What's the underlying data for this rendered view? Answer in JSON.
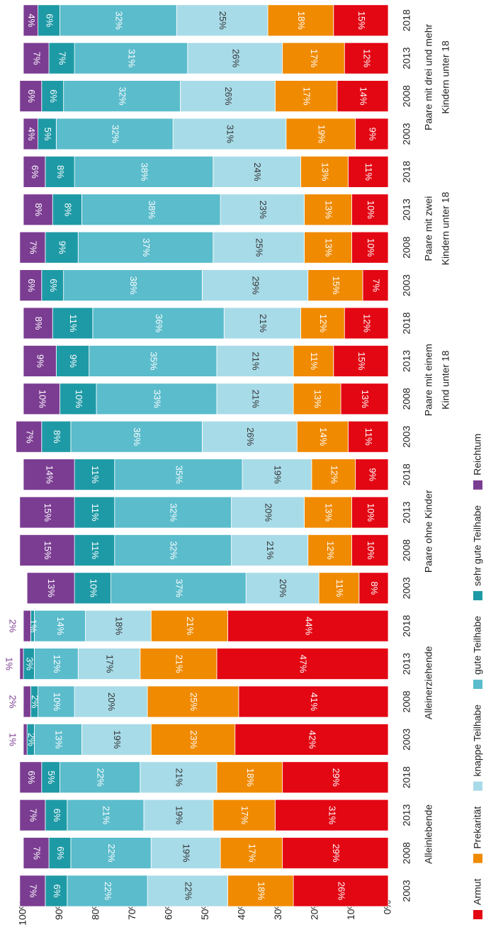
{
  "chart_data": {
    "type": "stacked_bar",
    "categories": [
      "2003",
      "2008",
      "2013",
      "2018",
      "2003",
      "2008",
      "2013",
      "2018",
      "2003",
      "2008",
      "2013",
      "2018",
      "2003",
      "2008",
      "2013",
      "2018",
      "2003",
      "2008",
      "2013",
      "2018",
      "2003",
      "2008",
      "2013",
      "2018"
    ],
    "groups": [
      [
        "Alleinlebende"
      ],
      [
        "Alleinerziehende"
      ],
      [
        "Paare ohne Kinder"
      ],
      [
        "Paare mit einem",
        "Kind unter 18"
      ],
      [
        "Paare mit zwei",
        "Kindern unter 18"
      ],
      [
        "Paare mit drei und mehr",
        "Kindern unter 18"
      ]
    ],
    "series": [
      {
        "name": "Armut",
        "color": "#e30613",
        "values": [
          26,
          29,
          31,
          29,
          42,
          41,
          47,
          44,
          8,
          10,
          10,
          9,
          11,
          13,
          15,
          12,
          7,
          10,
          10,
          11,
          9,
          14,
          12,
          15
        ],
        "value_labels": [
          "26%",
          "29%",
          "31%",
          "29%",
          "42%",
          "41%",
          "47%",
          "44%",
          "8%",
          "10%",
          "10%",
          "9%",
          "11%",
          "13%",
          "15%",
          "12%",
          "7%",
          "10%",
          "10%",
          "11%",
          "9%",
          "14%",
          "12%",
          "15%"
        ]
      },
      {
        "name": "Prekarität",
        "color": "#f08a00",
        "values": [
          18,
          17,
          17,
          18,
          23,
          25,
          21,
          21,
          11,
          12,
          13,
          12,
          14,
          13,
          11,
          12,
          15,
          13,
          13,
          13,
          19,
          17,
          17,
          18
        ],
        "value_labels": [
          "18%",
          "17%",
          "17%",
          "18%",
          "23%",
          "25%",
          "21%",
          "21%",
          "11%",
          "12%",
          "13%",
          "12%",
          "14%",
          "13%",
          "11%",
          "12%",
          "15%",
          "13%",
          "13%",
          "13%",
          "19%",
          "17%",
          "17%",
          "18%"
        ]
      },
      {
        "name": "knappe Teilhabe",
        "color": "#a8dbe8",
        "values": [
          22,
          19,
          19,
          21,
          19,
          20,
          17,
          18,
          20,
          21,
          20,
          19,
          26,
          21,
          21,
          21,
          29,
          25,
          23,
          24,
          31,
          26,
          26,
          25
        ],
        "value_labels": [
          "22%",
          "19%",
          "19%",
          "21%",
          "19%",
          "20%",
          "17%",
          "18%",
          "20%",
          "21%",
          "20%",
          "19%",
          "26%",
          "21%",
          "21%",
          "21%",
          "29%",
          "25%",
          "23%",
          "24%",
          "31%",
          "26%",
          "26%",
          "25%"
        ]
      },
      {
        "name": "gute Teilhabe",
        "color": "#5bbccc",
        "values": [
          22,
          22,
          21,
          22,
          13,
          10,
          12,
          14,
          37,
          32,
          32,
          35,
          36,
          33,
          35,
          36,
          38,
          37,
          38,
          38,
          32,
          32,
          31,
          32
        ],
        "value_labels": [
          "22%",
          "22%",
          "21%",
          "22%",
          "13%",
          "10%",
          "12%",
          "14%",
          "37%",
          "32%",
          "32%",
          "35%",
          "36%",
          "33%",
          "35%",
          "36%",
          "38%",
          "37%",
          "38%",
          "38%",
          "32%",
          "32%",
          "31%",
          "32%"
        ]
      },
      {
        "name": "sehr gute Teilhabe",
        "color": "#1e9aa6",
        "values": [
          6,
          6,
          6,
          5,
          2,
          2,
          3,
          1,
          10,
          11,
          11,
          11,
          8,
          10,
          9,
          11,
          6,
          9,
          8,
          8,
          5,
          6,
          7,
          6
        ],
        "value_labels": [
          "6%",
          "6%",
          "6%",
          "5%",
          "2%",
          "2%",
          "3%",
          "1%",
          "10%",
          "11%",
          "11%",
          "11%",
          "8%",
          "10%",
          "9%",
          "11%",
          "6%",
          "9%",
          "8%",
          "8%",
          "5%",
          "6%",
          "7%",
          "6%"
        ]
      },
      {
        "name": "Reichtum",
        "color": "#7b3d92",
        "values": [
          7,
          7,
          7,
          6,
          1,
          2,
          1,
          2,
          13,
          15,
          15,
          14,
          7,
          10,
          9,
          8,
          6,
          7,
          8,
          6,
          4,
          6,
          7,
          4
        ],
        "value_labels": [
          "7%",
          "7%",
          "7%",
          "6%",
          "1%",
          "2%",
          "1%",
          "2%",
          "13%",
          "15%",
          "15%",
          "14%",
          "7%",
          "10%",
          "9%",
          "8%",
          "6%",
          "7%",
          "8%",
          "6%",
          "4%",
          "6%",
          "7%",
          "4%"
        ]
      }
    ],
    "ylim": [
      0,
      100
    ],
    "yticks": [
      {
        "value": 0,
        "label": "0%"
      },
      {
        "value": 10,
        "label": "10%"
      },
      {
        "value": 20,
        "label": "20%"
      },
      {
        "value": 30,
        "label": "30%"
      },
      {
        "value": 40,
        "label": "40%"
      },
      {
        "value": 50,
        "label": "50%"
      },
      {
        "value": 60,
        "label": "60%"
      },
      {
        "value": 70,
        "label": "70%"
      },
      {
        "value": 80,
        "label": "80%"
      },
      {
        "value": 90,
        "label": "90%"
      },
      {
        "value": 100,
        "label": "100%"
      }
    ]
  }
}
